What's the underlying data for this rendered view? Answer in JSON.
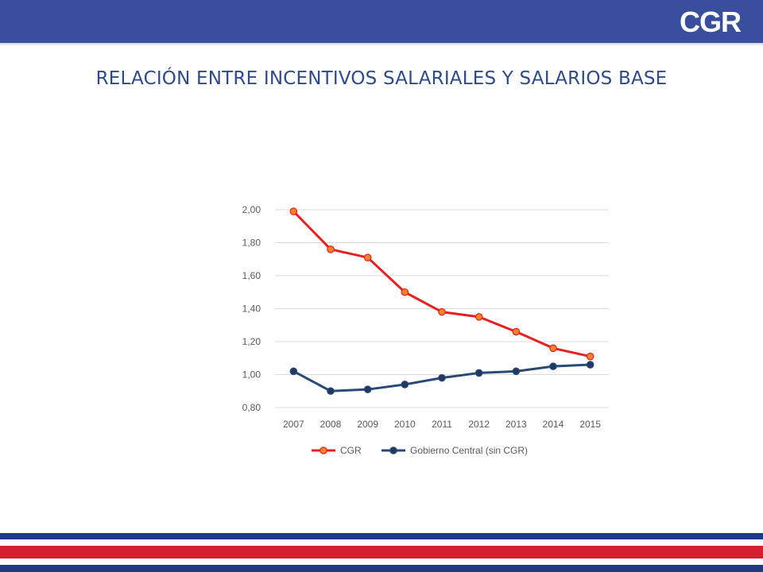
{
  "header": {
    "logo_text": "CGR",
    "bar_color": "#3a4f9c"
  },
  "slide": {
    "title": "RELACIÓN ENTRE INCENTIVOS SALARIALES Y SALARIOS BASE"
  },
  "chart_data": {
    "type": "line",
    "title": "",
    "xlabel": "",
    "ylabel": "",
    "categories": [
      "2007",
      "2008",
      "2009",
      "2010",
      "2011",
      "2012",
      "2013",
      "2014",
      "2015"
    ],
    "ylim": [
      0.8,
      2.0
    ],
    "yticks": [
      "2,00",
      "1,80",
      "1,60",
      "1,40",
      "1,20",
      "1,00",
      "0,80"
    ],
    "ytick_values": [
      2.0,
      1.8,
      1.6,
      1.4,
      1.2,
      1.0,
      0.8
    ],
    "grid": true,
    "legend_position": "bottom",
    "series": [
      {
        "name": "CGR",
        "color": "#e8201f",
        "marker_fill": "#f5832a",
        "values": [
          1.99,
          1.76,
          1.71,
          1.5,
          1.38,
          1.35,
          1.26,
          1.16,
          1.11
        ]
      },
      {
        "name": "Gobierno Central (sin CGR)",
        "color": "#2a4a76",
        "marker_fill": "#1f3864",
        "values": [
          1.02,
          0.9,
          0.91,
          0.94,
          0.98,
          1.01,
          1.02,
          1.05,
          1.06
        ]
      }
    ]
  },
  "footer": {
    "stripe_colors": [
      "#1f3a82",
      "#ffffff",
      "#d41f2e",
      "#ffffff",
      "#1f3a82"
    ]
  }
}
